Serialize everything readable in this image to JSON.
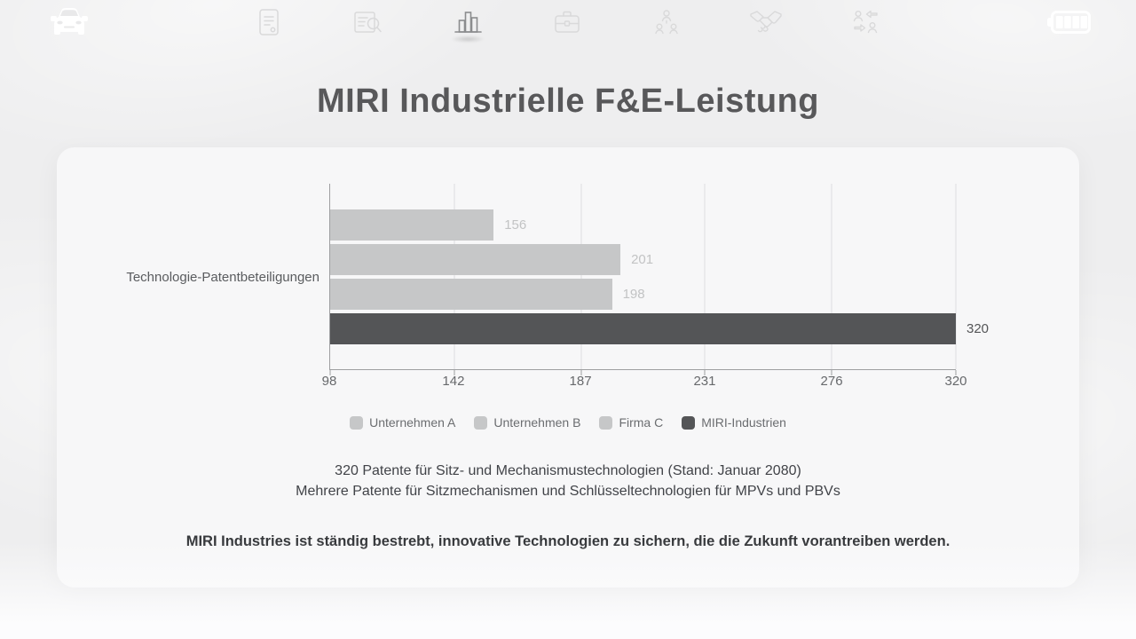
{
  "page_title": "MIRI Industrielle F&E-Leistung",
  "nav": {
    "icons": [
      {
        "name": "car-icon",
        "active": false
      },
      {
        "name": "document-icon",
        "active": false
      },
      {
        "name": "document-search-icon",
        "active": false
      },
      {
        "name": "bar-chart-icon",
        "active": true
      },
      {
        "name": "briefcase-icon",
        "active": false
      },
      {
        "name": "org-chart-icon",
        "active": false
      },
      {
        "name": "handshake-icon",
        "active": false
      },
      {
        "name": "people-exchange-icon",
        "active": false
      },
      {
        "name": "battery-icon",
        "active": false
      }
    ]
  },
  "chart_data": {
    "type": "bar",
    "orientation": "horizontal",
    "category_label": "Technologie-Patentbeteiligungen",
    "series": [
      {
        "name": "Unternehmen A",
        "value": 156,
        "color": "#c6c7c8",
        "label_color": "#c2c3c4"
      },
      {
        "name": "Unternehmen B",
        "value": 201,
        "color": "#c6c7c8",
        "label_color": "#c2c3c4"
      },
      {
        "name": "Firma C",
        "value": 198,
        "color": "#c6c7c8",
        "label_color": "#c2c3c4"
      },
      {
        "name": "MIRI-Industrien",
        "value": 320,
        "color": "#545557",
        "label_color": "#545557"
      }
    ],
    "xlim": [
      98,
      320
    ],
    "x_ticks": [
      98,
      142,
      187,
      231,
      276,
      320
    ],
    "grid": true,
    "legend_position": "bottom"
  },
  "notes": {
    "line1": "320 Patente für Sitz- und Mechanismustechnologien (Stand: Januar 2080)",
    "line2": "Mehrere Patente für Sitzmechanismen und Schlüsseltechnologien für MPVs und PBVs",
    "highlight": "MIRI Industries ist ständig bestrebt, innovative Technologien zu sichern, die die Zukunft vorantreiben werden."
  },
  "colors": {
    "page_background": "#eeeeef",
    "card_background": "#f7f7f8",
    "bar_light": "#c6c7c8",
    "bar_dark": "#545557",
    "axis": "#9e9fa1",
    "gridline": "#dddddf",
    "tick_label": "#67696c",
    "title": "#58585a"
  }
}
